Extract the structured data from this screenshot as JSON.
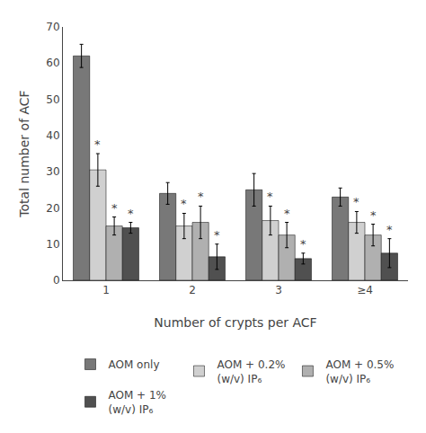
{
  "chart_data": {
    "type": "bar",
    "categories": [
      "1",
      "2",
      "3",
      "≥4"
    ],
    "series": [
      {
        "name": "AOM only",
        "color": "#787878",
        "values": [
          62,
          24,
          25,
          23
        ],
        "errors": [
          3.2,
          3.0,
          4.5,
          2.5
        ]
      },
      {
        "name": "AOM + 0.2%\n(w/v) IP₆",
        "color": "#d0d0d0",
        "values": [
          30.5,
          15,
          16.5,
          16
        ],
        "errors": [
          4.5,
          3.5,
          4.0,
          3.0
        ],
        "annotation": "*"
      },
      {
        "name": "AOM + 0.5%\n(w/v) IP₆",
        "color": "#b0b0b0",
        "values": [
          15,
          16,
          12.5,
          12.5
        ],
        "errors": [
          2.5,
          4.5,
          3.5,
          3.0
        ],
        "annotation": "*"
      },
      {
        "name": "AOM + 1%\n(w/v) IP₆",
        "color": "#505050",
        "values": [
          14.5,
          6.5,
          6,
          7.5
        ],
        "errors": [
          1.5,
          3.5,
          1.5,
          4.0
        ],
        "annotation": "*"
      }
    ],
    "xlabel": "Number of crypts per ACF",
    "ylabel": "Total number of ACF",
    "ylim": [
      0,
      70
    ],
    "yticks": [
      0,
      10,
      20,
      30,
      40,
      50,
      60,
      70
    ],
    "grid": false,
    "legend": "bottom"
  }
}
